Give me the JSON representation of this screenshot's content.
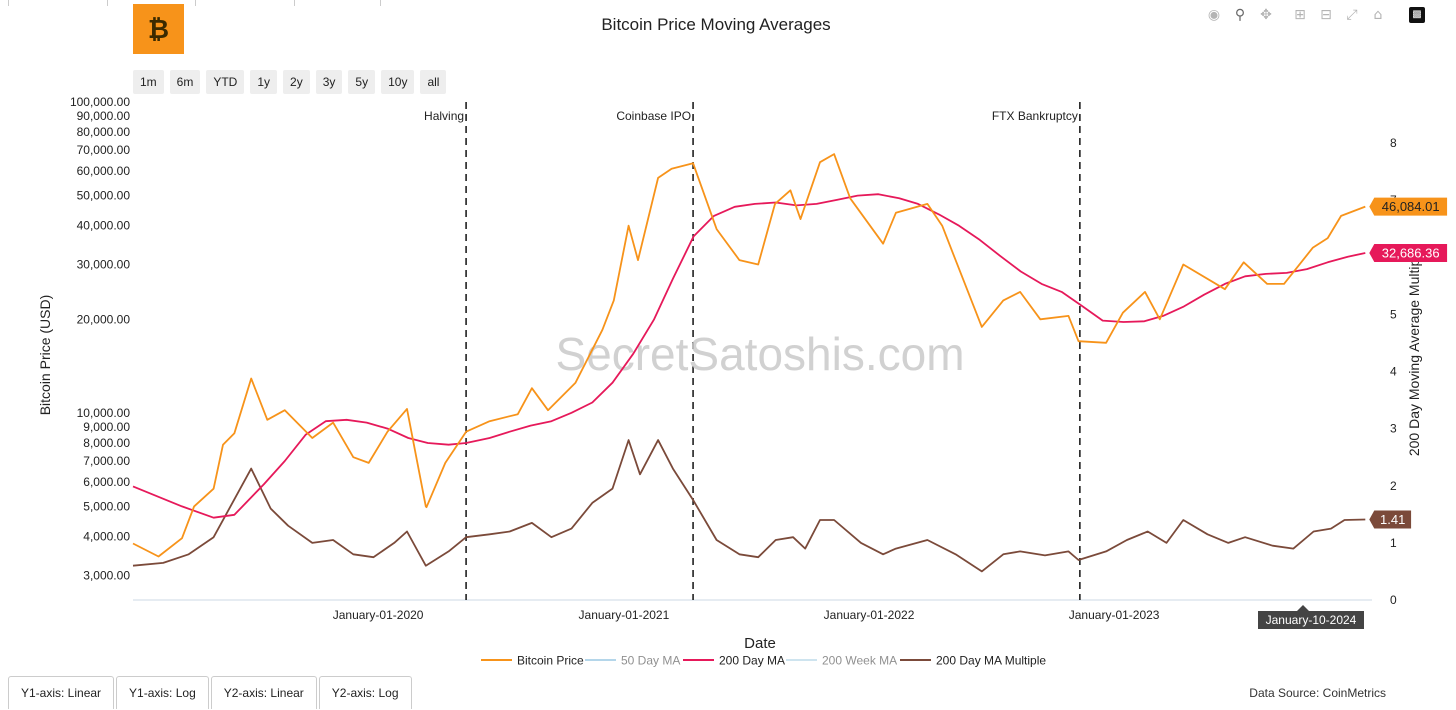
{
  "title": "Bitcoin Price Moving Averages",
  "watermark": "SecretSatoshis.com",
  "logo_glyph": "₿",
  "range_buttons": [
    "1m",
    "6m",
    "YTD",
    "1y",
    "2y",
    "3y",
    "5y",
    "10y",
    "all"
  ],
  "toolbar_icons": [
    "camera-icon",
    "zoom-icon",
    "pan-icon",
    "zoom-in-icon",
    "zoom-out-icon",
    "autoscale-icon",
    "home-icon",
    "plotly-logo-icon"
  ],
  "bottom_tabs": [
    "Y1-axis: Linear",
    "Y1-axis: Log",
    "Y2-axis: Linear",
    "Y2-axis: Log"
  ],
  "data_source": "Data Source: CoinMetrics",
  "hover_date": "January-10-2024",
  "colors": {
    "price": "#f7931a",
    "ma50": "#6baed6",
    "ma200": "#e6195a",
    "ma200w": "#9ecae1",
    "multiple": "#7b4a3a"
  },
  "chart_data": {
    "type": "line",
    "xlabel": "Date",
    "ylabel": "Bitcoin Price (USD)",
    "y2label": "200 Day Moving Average Multiple",
    "y_scale": "log",
    "ylim": [
      2500,
      100000
    ],
    "y2lim": [
      0,
      8
    ],
    "xlim": [
      "2019-01-01",
      "2024-01-20"
    ],
    "x_ticks": [
      "January-01-2020",
      "January-01-2021",
      "January-01-2022",
      "January-01-2023"
    ],
    "x_tick_dates": [
      "2020-01-01",
      "2021-01-01",
      "2022-01-01",
      "2023-01-01"
    ],
    "y_ticks": [
      "3,000.00",
      "4,000.00",
      "5,000.00",
      "6,000.00",
      "7,000.00",
      "8,000.00",
      "9,000.00",
      "10,000.00",
      "20,000.00",
      "30,000.00",
      "40,000.00",
      "50,000.00",
      "60,000.00",
      "70,000.00",
      "80,000.00",
      "90,000.00",
      "100,000.00"
    ],
    "y_tick_values": [
      3000,
      4000,
      5000,
      6000,
      7000,
      8000,
      9000,
      10000,
      20000,
      30000,
      40000,
      50000,
      60000,
      70000,
      80000,
      90000,
      100000
    ],
    "y2_ticks": [
      "0",
      "1",
      "2",
      "3",
      "4",
      "5",
      "6",
      "7",
      "8"
    ],
    "y2_tick_values": [
      0,
      1,
      2,
      3,
      4,
      5,
      6,
      7,
      8
    ],
    "events": [
      {
        "label": "Halving",
        "date": "2020-05-11"
      },
      {
        "label": "Coinbase IPO",
        "date": "2021-04-14"
      },
      {
        "label": "FTX Bankruptcy",
        "date": "2022-11-11"
      }
    ],
    "legend_position": "bottom-center",
    "series": [
      {
        "name": "Bitcoin Price",
        "axis": "y1",
        "visible": true,
        "last_label": "46,084.01",
        "x": [
          "2019-01-01",
          "2019-02-08",
          "2019-03-15",
          "2019-04-02",
          "2019-05-01",
          "2019-05-15",
          "2019-06-01",
          "2019-06-26",
          "2019-07-20",
          "2019-08-15",
          "2019-09-25",
          "2019-10-26",
          "2019-11-25",
          "2019-12-18",
          "2020-01-15",
          "2020-02-13",
          "2020-03-12",
          "2020-03-13",
          "2020-04-10",
          "2020-05-11",
          "2020-06-15",
          "2020-07-27",
          "2020-08-17",
          "2020-09-10",
          "2020-10-21",
          "2020-11-30",
          "2020-12-17",
          "2021-01-08",
          "2021-01-22",
          "2021-02-21",
          "2021-03-13",
          "2021-04-14",
          "2021-05-19",
          "2021-06-22",
          "2021-07-20",
          "2021-08-14",
          "2021-09-06",
          "2021-09-21",
          "2021-10-20",
          "2021-11-10",
          "2021-12-04",
          "2022-01-22",
          "2022-02-10",
          "2022-03-29",
          "2022-04-20",
          "2022-05-10",
          "2022-06-18",
          "2022-07-20",
          "2022-08-14",
          "2022-09-13",
          "2022-10-25",
          "2022-11-09",
          "2022-12-20",
          "2023-01-14",
          "2023-02-16",
          "2023-03-10",
          "2023-04-14",
          "2023-06-15",
          "2023-07-13",
          "2023-08-17",
          "2023-09-11",
          "2023-10-24",
          "2023-11-15",
          "2023-12-05",
          "2024-01-10"
        ],
        "y": [
          3800,
          3450,
          3950,
          5000,
          5700,
          7900,
          8600,
          12900,
          9500,
          10200,
          8300,
          9300,
          7200,
          6900,
          8700,
          10300,
          5000,
          4970,
          6900,
          8700,
          9400,
          9900,
          12000,
          10200,
          12500,
          18500,
          23000,
          40000,
          31000,
          57000,
          61000,
          63500,
          39000,
          31000,
          30000,
          47000,
          52000,
          42000,
          64000,
          68000,
          49000,
          35000,
          44000,
          47000,
          40000,
          31000,
          18900,
          23000,
          24500,
          20000,
          20500,
          17000,
          16800,
          21000,
          24500,
          20000,
          30000,
          25000,
          30500,
          26000,
          26000,
          34000,
          36500,
          43000,
          46084
        ]
      },
      {
        "name": "50 Day MA",
        "axis": "y1",
        "visible": false,
        "x": [],
        "y": []
      },
      {
        "name": "200 Day MA",
        "axis": "y1",
        "visible": true,
        "last_label": "32,686.36",
        "x": [
          "2019-01-01",
          "2019-03-15",
          "2019-05-01",
          "2019-06-01",
          "2019-07-15",
          "2019-08-15",
          "2019-09-15",
          "2019-10-15",
          "2019-11-15",
          "2019-12-15",
          "2020-01-15",
          "2020-02-15",
          "2020-03-15",
          "2020-04-15",
          "2020-05-11",
          "2020-06-15",
          "2020-07-15",
          "2020-08-15",
          "2020-09-15",
          "2020-10-15",
          "2020-11-15",
          "2020-12-15",
          "2021-01-15",
          "2021-02-15",
          "2021-03-15",
          "2021-04-15",
          "2021-05-15",
          "2021-06-15",
          "2021-07-15",
          "2021-08-15",
          "2021-09-15",
          "2021-10-15",
          "2021-11-15",
          "2021-12-15",
          "2022-01-15",
          "2022-02-15",
          "2022-03-15",
          "2022-04-15",
          "2022-05-15",
          "2022-06-15",
          "2022-07-15",
          "2022-08-15",
          "2022-09-15",
          "2022-10-15",
          "2022-11-15",
          "2022-12-15",
          "2023-01-15",
          "2023-02-15",
          "2023-03-15",
          "2023-04-15",
          "2023-05-15",
          "2023-06-15",
          "2023-07-15",
          "2023-08-15",
          "2023-09-15",
          "2023-10-15",
          "2023-11-15",
          "2023-12-15",
          "2024-01-10"
        ],
        "y": [
          5800,
          5000,
          4600,
          4700,
          5900,
          7000,
          8500,
          9400,
          9500,
          9300,
          8900,
          8300,
          8000,
          7900,
          8000,
          8300,
          8700,
          9100,
          9400,
          10000,
          10800,
          12500,
          15500,
          20000,
          27000,
          37000,
          43000,
          46000,
          47000,
          47500,
          46500,
          47000,
          48500,
          50000,
          50500,
          49000,
          47000,
          43500,
          40000,
          36000,
          32000,
          28500,
          26000,
          24500,
          22000,
          19800,
          19600,
          19700,
          20500,
          22000,
          24000,
          26000,
          27500,
          28000,
          28200,
          29000,
          30500,
          31800,
          32686
        ]
      },
      {
        "name": "200 Week MA",
        "axis": "y1",
        "visible": false,
        "x": [],
        "y": []
      },
      {
        "name": "200 Day MA Multiple",
        "axis": "y2",
        "visible": true,
        "last_label": "1.41",
        "x": [
          "2019-01-01",
          "2019-02-15",
          "2019-03-25",
          "2019-05-01",
          "2019-06-26",
          "2019-07-25",
          "2019-08-20",
          "2019-09-25",
          "2019-10-26",
          "2019-11-25",
          "2019-12-25",
          "2020-01-25",
          "2020-02-13",
          "2020-03-12",
          "2020-04-15",
          "2020-05-11",
          "2020-06-15",
          "2020-07-15",
          "2020-08-17",
          "2020-09-15",
          "2020-10-15",
          "2020-11-15",
          "2020-12-15",
          "2021-01-08",
          "2021-01-25",
          "2021-02-21",
          "2021-03-15",
          "2021-04-14",
          "2021-05-19",
          "2021-06-22",
          "2021-07-20",
          "2021-08-15",
          "2021-09-10",
          "2021-09-28",
          "2021-10-20",
          "2021-11-10",
          "2021-12-20",
          "2022-01-22",
          "2022-02-10",
          "2022-03-29",
          "2022-05-10",
          "2022-06-18",
          "2022-07-20",
          "2022-08-14",
          "2022-09-20",
          "2022-10-25",
          "2022-11-09",
          "2022-12-20",
          "2023-01-20",
          "2023-02-20",
          "2023-03-20",
          "2023-04-14",
          "2023-05-20",
          "2023-06-20",
          "2023-07-15",
          "2023-08-25",
          "2023-09-25",
          "2023-10-25",
          "2023-11-20",
          "2023-12-10",
          "2024-01-10"
        ],
        "y": [
          0.6,
          0.65,
          0.8,
          1.1,
          2.3,
          1.6,
          1.3,
          1.0,
          1.05,
          0.8,
          0.75,
          1.0,
          1.2,
          0.6,
          0.85,
          1.1,
          1.15,
          1.2,
          1.35,
          1.1,
          1.25,
          1.7,
          1.95,
          2.8,
          2.2,
          2.8,
          2.3,
          1.75,
          1.05,
          0.8,
          0.75,
          1.05,
          1.1,
          0.9,
          1.4,
          1.4,
          1.0,
          0.8,
          0.9,
          1.05,
          0.8,
          0.5,
          0.8,
          0.85,
          0.78,
          0.85,
          0.7,
          0.85,
          1.05,
          1.2,
          1.0,
          1.4,
          1.15,
          1.0,
          1.1,
          0.95,
          0.9,
          1.2,
          1.25,
          1.4,
          1.41
        ]
      }
    ]
  }
}
